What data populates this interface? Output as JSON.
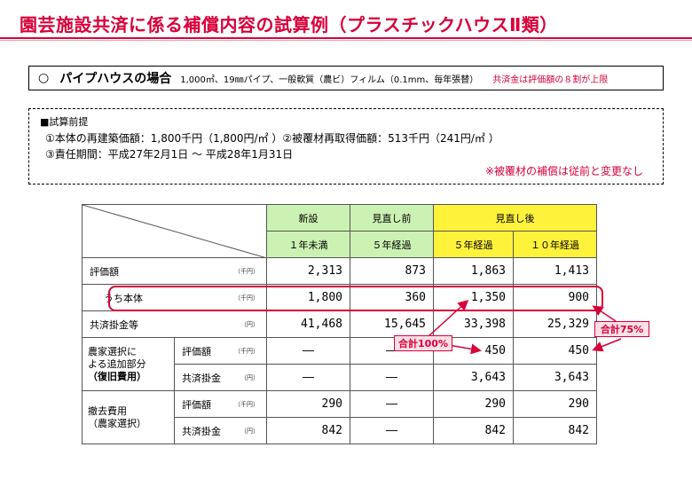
{
  "title": "園芸施設共済に係る補償内容の試算例（プラスチックハウスⅡ類）",
  "pipe": {
    "mark": "○",
    "name": "パイプハウスの場合",
    "spec": "1,000㎡、19㎜パイプ、一般軟質（農ビ）フィルム（0.1mm、毎年張替）",
    "note": "共済金は評価額の８割が上限"
  },
  "premise": {
    "heading": "■試算前提",
    "line1": "①本体の再建築価額：1,800千円（1,800円/㎡ ）②被覆材再取得価額：513千円（241円/㎡ ）",
    "line2": "③責任期間：平成27年2月1日 ～ 平成28年1月31日",
    "note": "※被覆材の補償は従前と変更なし"
  },
  "table": {
    "headers": {
      "shinsetsu": "新設",
      "before": "見直し前",
      "after": "見直し後",
      "c1": "１年未満",
      "c2": "５年経過",
      "c3": "５年経過",
      "c4": "１０年経過"
    },
    "rows": {
      "hyoka": {
        "label": "評価額",
        "unit": "（千円）",
        "v1": "2,313",
        "v2": "873",
        "v3": "1,863",
        "v4": "1,413"
      },
      "honntai": {
        "label": "うち本体",
        "unit": "（千円）",
        "v1": "1,800",
        "v2": "360",
        "v3": "1,350",
        "v4": "900"
      },
      "kakekin": {
        "label": "共済掛金等",
        "unit": "（円）",
        "v1": "41,468",
        "v2": "15,645",
        "v3": "33,398",
        "v4": "25,329"
      },
      "tsuika": {
        "group_label_1": "農家選択に",
        "group_label_2": "よる追加部分",
        "group_label_3": "（復旧費用）",
        "hyoka_label": "評価額",
        "hyoka_unit": "（千円）",
        "hyoka_v1": "―",
        "hyoka_v2": "―",
        "hyoka_v3": "450",
        "hyoka_v4": "450",
        "kakekin_label": "共済掛金",
        "kakekin_unit": "（円）",
        "kakekin_v1": "―",
        "kakekin_v2": "―",
        "kakekin_v3": "3,643",
        "kakekin_v4": "3,643"
      },
      "tekkyo": {
        "group_label_1": "撤去費用",
        "group_label_2": "（農家選択）",
        "hyoka_label": "評価額",
        "hyoka_unit": "（千円）",
        "hyoka_v1": "290",
        "hyoka_v2": "―",
        "hyoka_v3": "290",
        "hyoka_v4": "290",
        "kakekin_label": "共済掛金",
        "kakekin_unit": "（円）",
        "kakekin_v1": "842",
        "kakekin_v2": "―",
        "kakekin_v3": "842",
        "kakekin_v4": "842"
      }
    }
  },
  "callouts": {
    "total100": "合計100%",
    "total75": "合計75%"
  },
  "colors": {
    "accent_red": "#d8003a",
    "header_green": "#ccf2b3",
    "header_yellow": "#fff23a"
  }
}
